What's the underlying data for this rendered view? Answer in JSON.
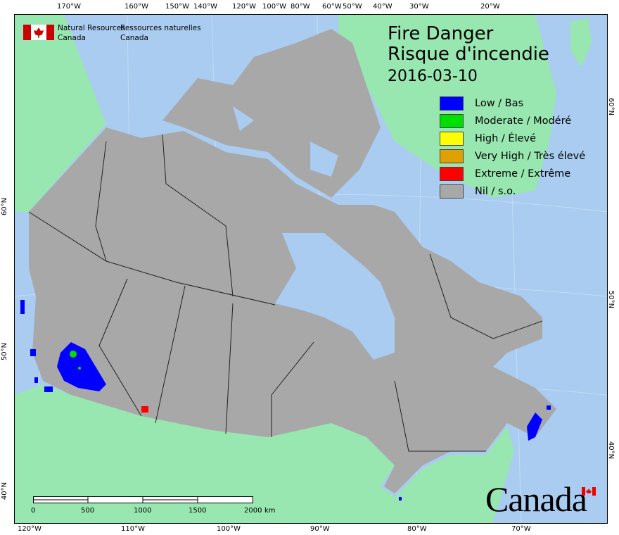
{
  "title_en": "Fire Danger",
  "title_fr": "Risque d'incendie",
  "date": "2016-03-10",
  "agency": {
    "en_line1": "Natural Resources",
    "en_line2": "Canada",
    "fr_line1": "Ressources naturelles",
    "fr_line2": "Canada"
  },
  "wordmark": "Canada",
  "legend": [
    {
      "label": "Low / Bas",
      "color": "#0000ff"
    },
    {
      "label": "Moderate / Modéré",
      "color": "#00e000"
    },
    {
      "label": "High / Élevé",
      "color": "#ffff00"
    },
    {
      "label": "Very High / Très élevé",
      "color": "#e0a000"
    },
    {
      "label": "Extreme / Extrême",
      "color": "#ff0000"
    },
    {
      "label": "Nil / s.o.",
      "color": "#a8a8a8"
    }
  ],
  "top_ticks": [
    "170°W",
    "160°W",
    "150°W",
    "140°W",
    "120°W",
    "100°W",
    "80°W",
    "60°W",
    "50°W",
    "40°W",
    "30°W",
    "20°W"
  ],
  "bottom_ticks": [
    "120°W",
    "110°W",
    "100°W",
    "90°W",
    "80°W",
    "70°W"
  ],
  "left_ticks": [
    "60°N",
    "50°N",
    "40°N"
  ],
  "right_ticks": [
    "60°N",
    "50°N",
    "40°N"
  ],
  "scale": {
    "labels": [
      "0",
      "500",
      "1000",
      "1500",
      "2000"
    ],
    "unit": "km"
  },
  "colors": {
    "water": "#a9ccf0",
    "foreign_land": "#98e6b0",
    "canada_nil": "#a8a8a8"
  }
}
